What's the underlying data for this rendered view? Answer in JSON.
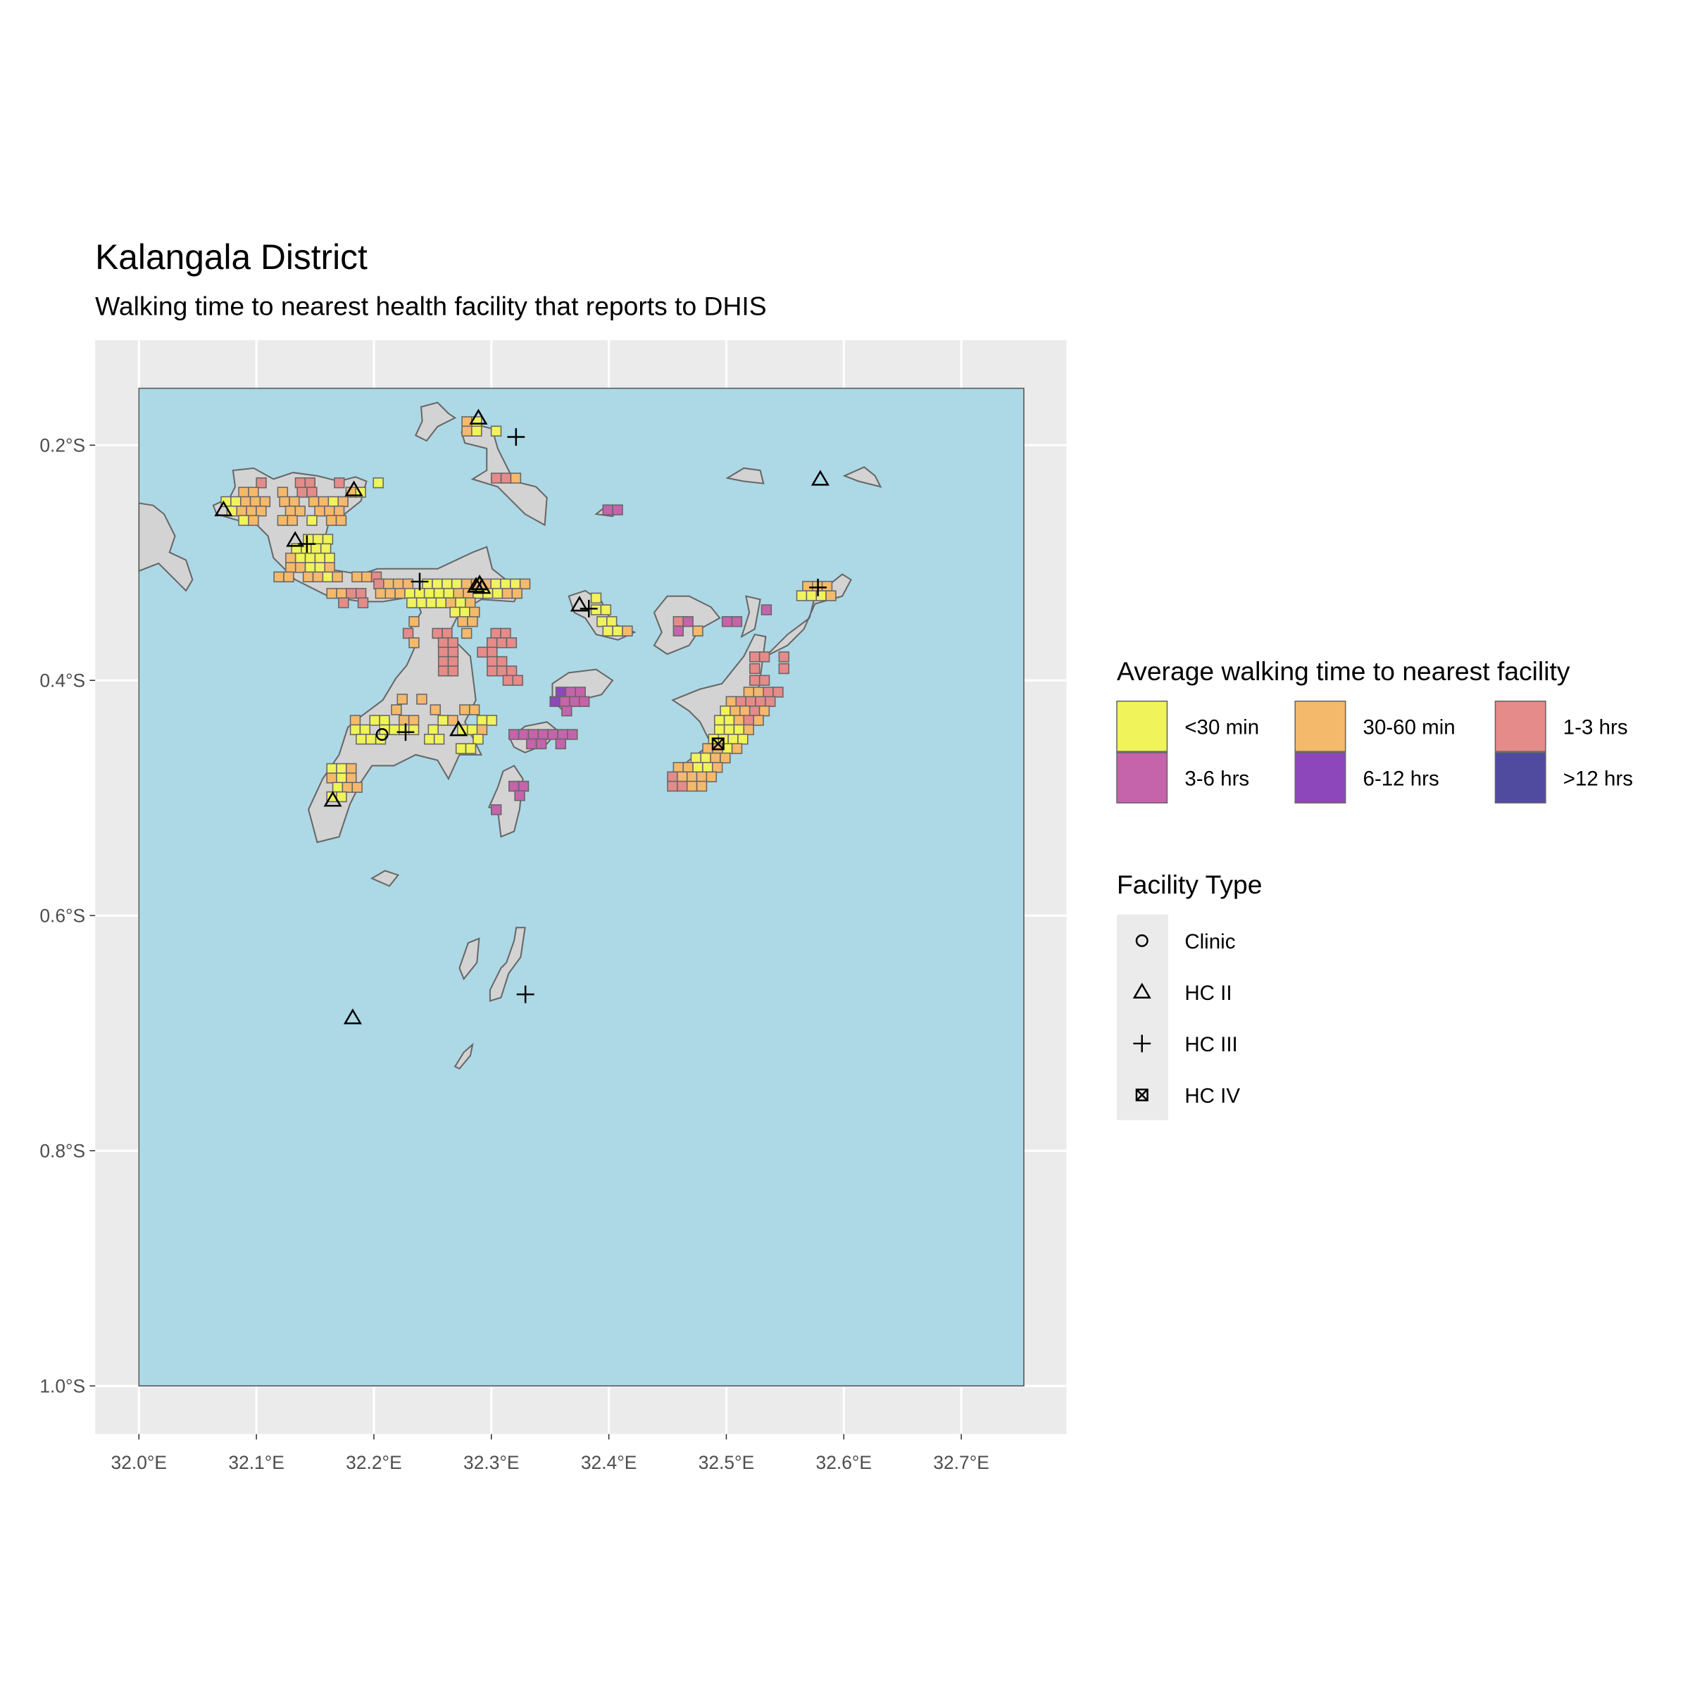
{
  "title": "Kalangala District",
  "subtitle": "Walking time to nearest health facility that reports to DHIS",
  "axes": {
    "x_ticks": [
      {
        "value": 32.0,
        "label": "32.0°E"
      },
      {
        "value": 32.1,
        "label": "32.1°E"
      },
      {
        "value": 32.2,
        "label": "32.2°E"
      },
      {
        "value": 32.3,
        "label": "32.3°E"
      },
      {
        "value": 32.4,
        "label": "32.4°E"
      },
      {
        "value": 32.5,
        "label": "32.5°E"
      },
      {
        "value": 32.6,
        "label": "32.6°E"
      },
      {
        "value": 32.7,
        "label": "32.7°E"
      }
    ],
    "y_ticks": [
      {
        "value": -0.2,
        "label": "0.2°S"
      },
      {
        "value": -0.4,
        "label": "0.4°S"
      },
      {
        "value": -0.6,
        "label": "0.6°S"
      },
      {
        "value": -0.8,
        "label": "0.8°S"
      },
      {
        "value": -1.0,
        "label": "1.0°S"
      }
    ],
    "xlim": [
      31.963,
      32.79
    ],
    "ylim": [
      -1.04,
      -0.111
    ]
  },
  "colors": {
    "panel": "#ebebeb",
    "water": "#add8e6",
    "land": "#d3d3d3",
    "grid": "#ffffff"
  },
  "legend_time": {
    "title": "Average walking time to nearest facility",
    "items": [
      {
        "code": "a",
        "label": "<30 min",
        "color": "#f0f35a"
      },
      {
        "code": "b",
        "label": "30-60 min",
        "color": "#f5b96b"
      },
      {
        "code": "c",
        "label": "1-3 hrs",
        "color": "#e58b89"
      },
      {
        "code": "d",
        "label": "3-6 hrs",
        "color": "#c563ab"
      },
      {
        "code": "e",
        "label": "6-12 hrs",
        "color": "#8e47ba"
      },
      {
        "code": "f",
        "label": ">12 hrs",
        "color": "#504b9f"
      }
    ]
  },
  "legend_facility": {
    "title": "Facility Type",
    "items": [
      {
        "type": "clinic",
        "label": "Clinic",
        "icon": "circle-icon"
      },
      {
        "type": "hc2",
        "label": "HC II",
        "icon": "triangle-icon"
      },
      {
        "type": "hc3",
        "label": "HC III",
        "icon": "plus-icon"
      },
      {
        "type": "hc4",
        "label": "HC IV",
        "icon": "boxed-x-icon"
      }
    ]
  },
  "chart_data": {
    "type": "map",
    "region_extent": {
      "lon": [
        32.0,
        32.753
      ],
      "lat": [
        -1.0,
        -0.152
      ]
    },
    "cell_size_deg": 0.0083,
    "raster_rows": [
      {
        "lat": -0.18,
        "lon0": 32.275,
        "codes": "ba"
      },
      {
        "lat": -0.188,
        "lon0": 32.275,
        "codes": "ba.a"
      },
      {
        "lat": -0.228,
        "lon0": 32.3,
        "codes": "ccb"
      },
      {
        "lat": -0.232,
        "lon0": 32.1,
        "codes": "c...cc..c...a"
      },
      {
        "lat": -0.24,
        "lon0": 32.085,
        "codes": "bb..b.cc...ba"
      },
      {
        "lat": -0.248,
        "lon0": 32.07,
        "codes": "aabbb.bb.bbab"
      },
      {
        "lat": -0.256,
        "lon0": 32.075,
        "codes": "abbb..bb.bbb"
      },
      {
        "lat": -0.264,
        "lon0": 32.085,
        "codes": "ab..bb.a.bb"
      },
      {
        "lat": -0.255,
        "lon0": 32.395,
        "codes": "dd"
      },
      {
        "lat": -0.28,
        "lon0": 32.14,
        "codes": "aaa"
      },
      {
        "lat": -0.288,
        "lon0": 32.13,
        "codes": "aaaa"
      },
      {
        "lat": -0.296,
        "lon0": 32.125,
        "codes": "baaaa"
      },
      {
        "lat": -0.304,
        "lon0": 32.125,
        "codes": "bbaab"
      },
      {
        "lat": -0.312,
        "lon0": 32.115,
        "codes": "bb.bbab.bbc"
      },
      {
        "lat": -0.318,
        "lon0": 32.2,
        "codes": "cbbb.aaaabbbaaab"
      },
      {
        "lat": -0.326,
        "lon0": 32.16,
        "codes": "bbcc.bbbaaaaabbaaabb"
      },
      {
        "lat": -0.334,
        "lon0": 32.17,
        "codes": "c.c....aaaabab"
      },
      {
        "lat": -0.342,
        "lon0": 32.24,
        "codes": "...aab"
      },
      {
        "lat": -0.35,
        "lon0": 32.23,
        "codes": "b....bb"
      },
      {
        "lat": -0.36,
        "lon0": 32.225,
        "codes": "c..cc.b..cc"
      },
      {
        "lat": -0.368,
        "lon0": 32.23,
        "codes": "b..cc...ccc"
      },
      {
        "lat": -0.376,
        "lon0": 32.255,
        "codes": "cc..cc"
      },
      {
        "lat": -0.384,
        "lon0": 32.255,
        "codes": "cc...cc"
      },
      {
        "lat": -0.392,
        "lon0": 32.255,
        "codes": "cc...ccc"
      },
      {
        "lat": -0.4,
        "lon0": 32.31,
        "codes": "cc"
      },
      {
        "lat": -0.416,
        "lon0": 32.22,
        "codes": "b.b"
      },
      {
        "lat": -0.425,
        "lon0": 32.215,
        "codes": "b...b..bb"
      },
      {
        "lat": -0.434,
        "lon0": 32.18,
        "codes": "b.aa.bb..ab..aa"
      },
      {
        "lat": -0.442,
        "lon0": 32.18,
        "codes": "aa.aaaa.a..aab"
      },
      {
        "lat": -0.45,
        "lon0": 32.185,
        "codes": "aaa....aa...a"
      },
      {
        "lat": -0.458,
        "lon0": 32.27,
        "codes": "aa"
      },
      {
        "lat": -0.475,
        "lon0": 32.16,
        "codes": "aab"
      },
      {
        "lat": -0.483,
        "lon0": 32.16,
        "codes": "bab"
      },
      {
        "lat": -0.491,
        "lon0": 32.165,
        "codes": "abb"
      },
      {
        "lat": -0.499,
        "lon0": 32.16,
        "codes": "aa"
      },
      {
        "lat": -0.33,
        "lon0": 32.385,
        "codes": "a"
      },
      {
        "lat": -0.34,
        "lon0": 32.385,
        "codes": "aa"
      },
      {
        "lat": -0.35,
        "lon0": 32.39,
        "codes": "aa"
      },
      {
        "lat": -0.358,
        "lon0": 32.395,
        "codes": "aab"
      },
      {
        "lat": -0.41,
        "lon0": 32.355,
        "codes": "edd"
      },
      {
        "lat": -0.418,
        "lon0": 32.35,
        "codes": "eddd"
      },
      {
        "lat": -0.426,
        "lon0": 32.36,
        "codes": "d"
      },
      {
        "lat": -0.446,
        "lon0": 32.315,
        "codes": "ddddddd"
      },
      {
        "lat": -0.454,
        "lon0": 32.33,
        "codes": "dd.d"
      },
      {
        "lat": -0.49,
        "lon0": 32.315,
        "codes": "dd"
      },
      {
        "lat": -0.498,
        "lon0": 32.32,
        "codes": "d"
      },
      {
        "lat": -0.51,
        "lon0": 32.3,
        "codes": "d"
      },
      {
        "lat": -0.32,
        "lon0": 32.565,
        "codes": "bbb"
      },
      {
        "lat": -0.328,
        "lon0": 32.56,
        "codes": "aaab"
      },
      {
        "lat": -0.34,
        "lon0": 32.53,
        "codes": "d"
      },
      {
        "lat": -0.35,
        "lon0": 32.455,
        "codes": "cd...dd"
      },
      {
        "lat": -0.358,
        "lon0": 32.455,
        "codes": "d.b"
      },
      {
        "lat": -0.38,
        "lon0": 32.52,
        "codes": "cc.c"
      },
      {
        "lat": -0.39,
        "lon0": 32.52,
        "codes": "c..c"
      },
      {
        "lat": -0.4,
        "lon0": 32.52,
        "codes": "cc"
      },
      {
        "lat": -0.41,
        "lon0": 32.515,
        "codes": "bbcc"
      },
      {
        "lat": -0.418,
        "lon0": 32.5,
        "codes": "bcccc"
      },
      {
        "lat": -0.426,
        "lon0": 32.495,
        "codes": "abbcb"
      },
      {
        "lat": -0.434,
        "lon0": 32.49,
        "codes": "aabcb"
      },
      {
        "lat": -0.442,
        "lon0": 32.49,
        "codes": "aaab"
      },
      {
        "lat": -0.45,
        "lon0": 32.485,
        "codes": "aaaa"
      },
      {
        "lat": -0.458,
        "lon0": 32.48,
        "codes": "bbab"
      },
      {
        "lat": -0.466,
        "lon0": 32.47,
        "codes": "aabb"
      },
      {
        "lat": -0.474,
        "lon0": 32.455,
        "codes": "bbaab"
      },
      {
        "lat": -0.482,
        "lon0": 32.45,
        "codes": "cbbbb"
      },
      {
        "lat": -0.49,
        "lon0": 32.45,
        "codes": "ccbb"
      }
    ],
    "facilities": [
      {
        "type": "hc2",
        "lon": 32.289,
        "lat": -0.177
      },
      {
        "type": "hc3",
        "lon": 32.321,
        "lat": -0.193
      },
      {
        "type": "hc2",
        "lon": 32.58,
        "lat": -0.229
      },
      {
        "type": "hc2",
        "lon": 32.072,
        "lat": -0.255
      },
      {
        "type": "hc2",
        "lon": 32.183,
        "lat": -0.238
      },
      {
        "type": "hc2",
        "lon": 32.133,
        "lat": -0.281
      },
      {
        "type": "hc3",
        "lon": 32.143,
        "lat": -0.284
      },
      {
        "type": "hc3",
        "lon": 32.239,
        "lat": -0.316
      },
      {
        "type": "hc2",
        "lon": 32.287,
        "lat": -0.32
      },
      {
        "type": "hc2",
        "lon": 32.29,
        "lat": -0.318
      },
      {
        "type": "hc2",
        "lon": 32.292,
        "lat": -0.321
      },
      {
        "type": "hc2",
        "lon": 32.375,
        "lat": -0.336
      },
      {
        "type": "hc3",
        "lon": 32.383,
        "lat": -0.339
      },
      {
        "type": "hc3",
        "lon": 32.578,
        "lat": -0.321
      },
      {
        "type": "clinic",
        "lon": 32.207,
        "lat": -0.446
      },
      {
        "type": "hc3",
        "lon": 32.227,
        "lat": -0.444
      },
      {
        "type": "hc2",
        "lon": 32.272,
        "lat": -0.442
      },
      {
        "type": "hc4",
        "lon": 32.493,
        "lat": -0.454
      },
      {
        "type": "hc2",
        "lon": 32.165,
        "lat": -0.502
      },
      {
        "type": "hc2",
        "lon": 32.182,
        "lat": -0.687
      },
      {
        "type": "hc3",
        "lon": 32.329,
        "lat": -0.667
      }
    ]
  }
}
